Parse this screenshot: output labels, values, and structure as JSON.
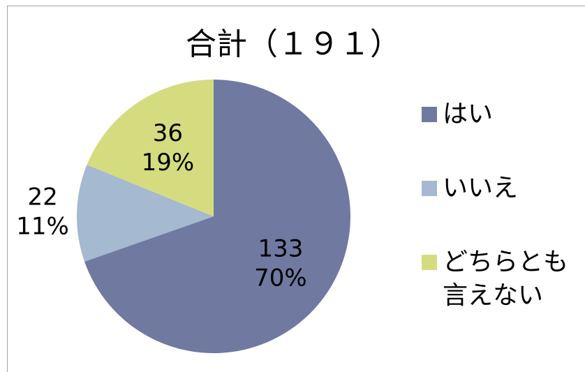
{
  "chart_data": {
    "type": "pie",
    "title": "合計（１９１）",
    "categories": [
      "はい",
      "いいえ",
      "どちらとも言えない"
    ],
    "values": [
      133,
      22,
      36
    ],
    "percent_labels": [
      "70%",
      "11%",
      "19%"
    ],
    "colors": [
      "#7079a0",
      "#a5b9d0",
      "#d5dc80"
    ],
    "legend": "right"
  }
}
